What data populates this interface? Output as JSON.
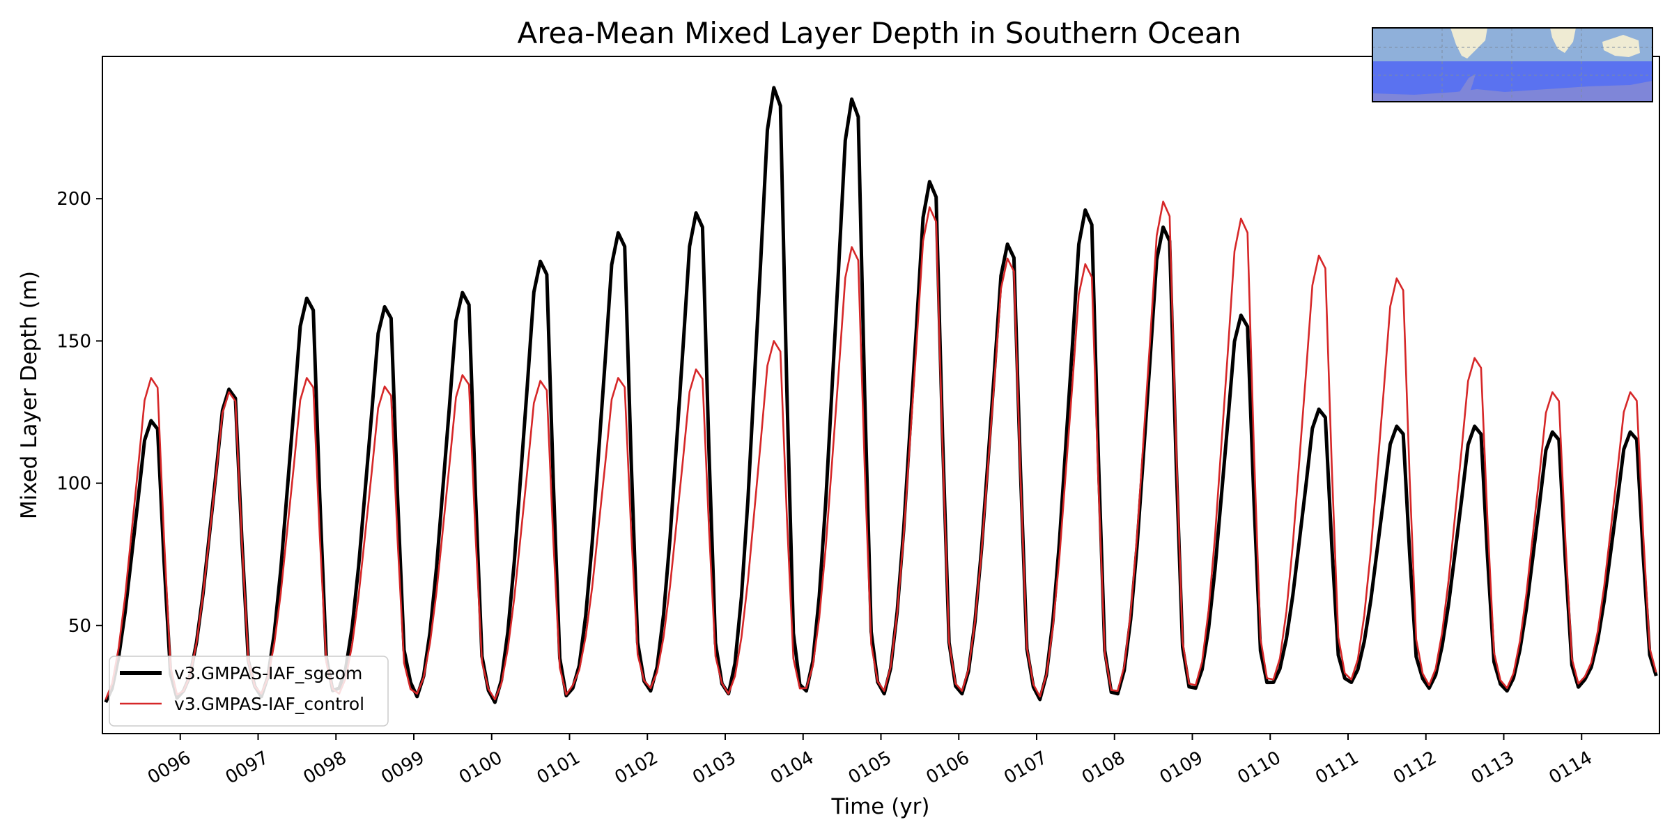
{
  "chart_data": {
    "type": "line",
    "title": "Area-Mean Mixed Layer Depth in Southern Ocean",
    "xlabel": "Time (yr)",
    "ylabel": "Mixed Layer Depth (m)",
    "xlim": [
      95.0,
      115.0
    ],
    "ylim": [
      12,
      250
    ],
    "yticks": [
      50,
      100,
      150,
      200
    ],
    "xticks": [
      96,
      97,
      98,
      99,
      100,
      101,
      102,
      103,
      104,
      105,
      106,
      107,
      108,
      109,
      110,
      111,
      112,
      113,
      114
    ],
    "xtick_labels": [
      "0096",
      "0097",
      "0098",
      "0099",
      "0100",
      "0101",
      "0102",
      "0103",
      "0104",
      "0105",
      "0106",
      "0107",
      "0108",
      "0109",
      "0110",
      "0111",
      "0112",
      "0113",
      "0114"
    ],
    "grid": false,
    "legend_position": "lower-left",
    "inset": "southern-ocean-region-map",
    "series": [
      {
        "name": "v3.GMPAS-IAF_sgeom",
        "color": "#000000",
        "annual_min": [
          23,
          27,
          25,
          28,
          25,
          23,
          28,
          27,
          26,
          27,
          26,
          26,
          24,
          26,
          28,
          30,
          30,
          28,
          27,
          31
        ],
        "annual_max": [
          122,
          133,
          165,
          162,
          167,
          178,
          188,
          195,
          239,
          235,
          206,
          184,
          196,
          190,
          159,
          126,
          120,
          120,
          118,
          118
        ]
      },
      {
        "name": "v3.GMPAS-IAF_control",
        "color": "#d62728",
        "annual_min": [
          24,
          27,
          26,
          26,
          26,
          24,
          29,
          28,
          26,
          28,
          27,
          27,
          25,
          27,
          29,
          31,
          31,
          29,
          28,
          32
        ],
        "annual_max": [
          137,
          132,
          137,
          134,
          138,
          136,
          137,
          140,
          150,
          183,
          197,
          179,
          177,
          199,
          193,
          180,
          172,
          144,
          132,
          132
        ]
      }
    ]
  },
  "inset_colors": {
    "ocean": "#8fb0da",
    "region": "#5a72f0",
    "land": "#efebd3"
  }
}
